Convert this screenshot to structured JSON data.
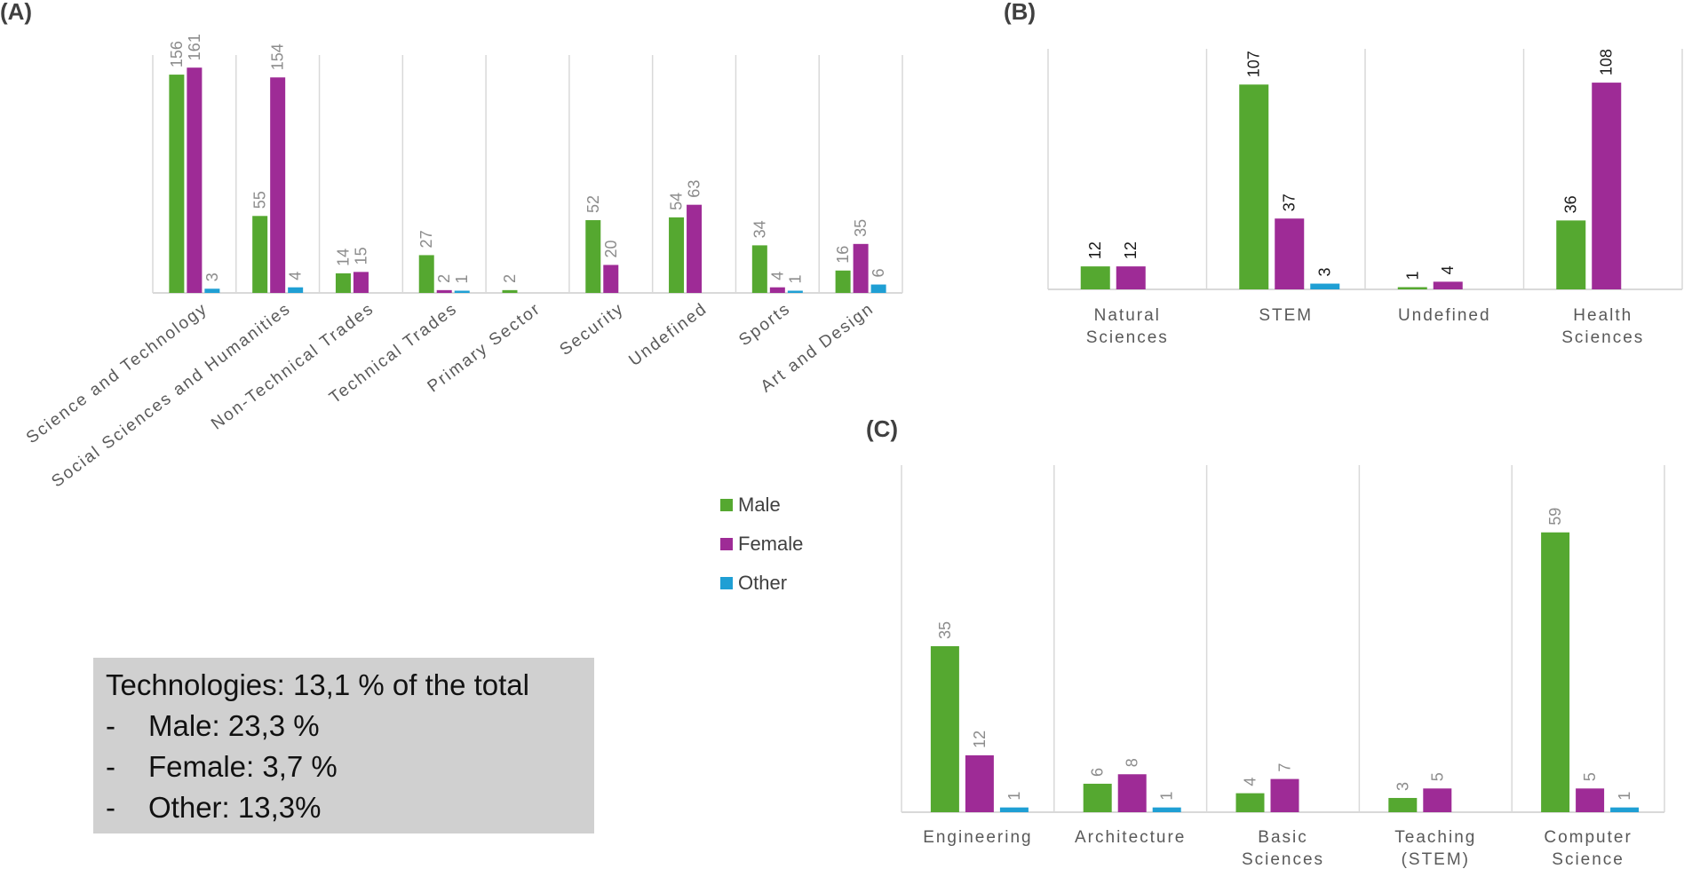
{
  "colors": {
    "Male": "#55a830",
    "Female": "#9e2b96",
    "Other": "#1f9fd4",
    "grid": "#d9d9d9",
    "valueGray": "#8c8c8c",
    "valueBlack": "#1a1a1a"
  },
  "legend": [
    "Male",
    "Female",
    "Other"
  ],
  "chart_data": [
    {
      "panel": "(A)",
      "type": "bar",
      "series_names": [
        "Male",
        "Female",
        "Other"
      ],
      "categories": [
        "Science and Technology",
        "Social Sciences and Humanities",
        "Non-Technical Trades",
        "Technical Trades",
        "Primary Sector",
        "Security",
        "Undefined",
        "Sports",
        "Art and Design"
      ],
      "series": [
        {
          "name": "Male",
          "values": [
            156,
            55,
            14,
            27,
            2,
            52,
            54,
            34,
            16
          ]
        },
        {
          "name": "Female",
          "values": [
            161,
            154,
            15,
            2,
            null,
            20,
            63,
            4,
            35
          ]
        },
        {
          "name": "Other",
          "values": [
            3,
            4,
            null,
            1,
            null,
            null,
            null,
            1,
            6
          ]
        }
      ],
      "ylim": [
        0,
        170
      ]
    },
    {
      "panel": "(B)",
      "type": "bar",
      "series_names": [
        "Male",
        "Female",
        "Other"
      ],
      "categories": [
        "Natural Sciences",
        "STEM",
        "Undefined",
        "Health Sciences"
      ],
      "series": [
        {
          "name": "Male",
          "values": [
            12,
            107,
            1,
            36
          ]
        },
        {
          "name": "Female",
          "values": [
            12,
            37,
            4,
            108
          ]
        },
        {
          "name": "Other",
          "values": [
            null,
            3,
            null,
            null
          ]
        }
      ],
      "ylim": [
        0,
        115
      ]
    },
    {
      "panel": "(C)",
      "type": "bar",
      "series_names": [
        "Male",
        "Female",
        "Other"
      ],
      "categories": [
        "Engineering",
        "Architecture",
        "Basic Sciences",
        "Teaching (STEM)",
        "Computer Science"
      ],
      "series": [
        {
          "name": "Male",
          "values": [
            35,
            6,
            4,
            3,
            59
          ]
        },
        {
          "name": "Female",
          "values": [
            12,
            8,
            7,
            5,
            5
          ]
        },
        {
          "name": "Other",
          "values": [
            1,
            1,
            null,
            null,
            1
          ]
        }
      ],
      "ylim": [
        0,
        70
      ]
    }
  ],
  "note": {
    "title": "Technologies: 13,1 % of the total",
    "items": [
      {
        "dash": "-",
        "text": "Male: 23,3 %"
      },
      {
        "dash": "-",
        "text": "Female: 3,7 %"
      },
      {
        "dash": "-",
        "text": "Other: 13,3%"
      }
    ]
  }
}
